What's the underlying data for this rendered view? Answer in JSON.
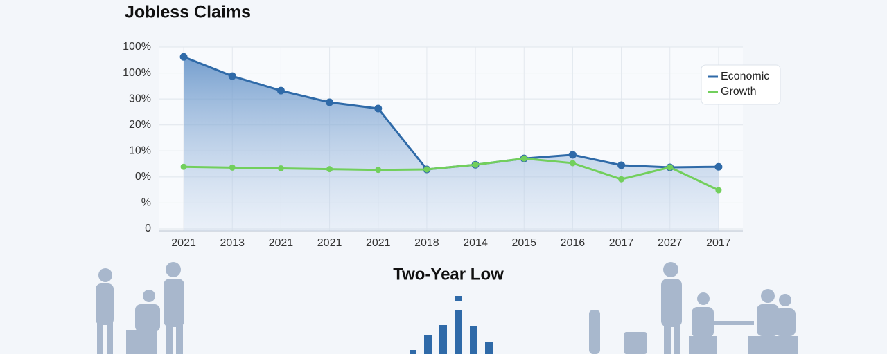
{
  "chart_data": {
    "type": "line",
    "title": "Jobless Claims",
    "subtitle": "Two-Year Low",
    "categories": [
      "2021",
      "2013",
      "2021",
      "2021",
      "2021",
      "2018",
      "2014",
      "2015",
      "2016",
      "2017",
      "2027",
      "2017"
    ],
    "series": [
      {
        "name": "Economic",
        "color": "#2f6aa8",
        "values": [
          6.62,
          5.88,
          5.32,
          4.87,
          4.63,
          2.29,
          2.47,
          2.71,
          2.85,
          2.45,
          2.37,
          2.39
        ]
      },
      {
        "name": "Growth",
        "color": "#72cf5c",
        "values": [
          2.39,
          2.36,
          2.33,
          2.3,
          2.27,
          2.29,
          2.47,
          2.71,
          2.53,
          1.91,
          2.37,
          1.49
        ]
      }
    ],
    "ylim": [
      0,
      7
    ],
    "yticks": [
      {
        "value": 0,
        "label": "0"
      },
      {
        "value": 1,
        "label": "%"
      },
      {
        "value": 2,
        "label": "0%"
      },
      {
        "value": 3,
        "label": "10%"
      },
      {
        "value": 4,
        "label": "20%"
      },
      {
        "value": 5,
        "label": "30%"
      },
      {
        "value": 6,
        "label": "100%"
      },
      {
        "value": 7,
        "label": "100%"
      }
    ],
    "grid": true,
    "legend": "top-right"
  }
}
